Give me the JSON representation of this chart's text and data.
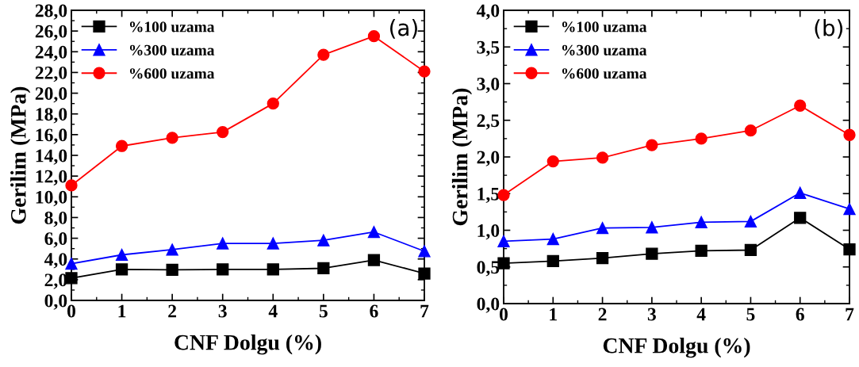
{
  "chart_data": [
    {
      "type": "line",
      "xlabel": "CNF Dolgu (%)",
      "ylabel": "Gerilim (MPa)",
      "annotations": [
        "(a)"
      ],
      "legend": "top left",
      "grid": false,
      "x": [
        0,
        1,
        2,
        3,
        4,
        5,
        6,
        7
      ],
      "xlim": [
        0,
        7
      ],
      "xticks": [
        0,
        1,
        2,
        3,
        4,
        5,
        6,
        7
      ],
      "ylim": [
        0,
        28
      ],
      "yticks": [
        {
          "value": 0,
          "label": "0,0"
        },
        {
          "value": 2,
          "label": "2,0"
        },
        {
          "value": 4,
          "label": "4,0"
        },
        {
          "value": 6,
          "label": "6,0"
        },
        {
          "value": 8,
          "label": "8,0"
        },
        {
          "value": 10,
          "label": "10,0"
        },
        {
          "value": 12,
          "label": "12,0"
        },
        {
          "value": 14,
          "label": "14,0"
        },
        {
          "value": 16,
          "label": "16,0"
        },
        {
          "value": 18,
          "label": "18,0"
        },
        {
          "value": 20,
          "label": "20,0"
        },
        {
          "value": 22,
          "label": "22,0"
        },
        {
          "value": 24,
          "label": "24,0"
        },
        {
          "value": 26,
          "label": "26,0"
        },
        {
          "value": 28,
          "label": "28,0"
        }
      ],
      "series": [
        {
          "name": "%100 uzama",
          "color": "#000000",
          "marker": "square",
          "values": [
            2.15,
            3.0,
            2.95,
            3.0,
            3.0,
            3.1,
            3.9,
            2.6
          ]
        },
        {
          "name": "%300 uzama",
          "color": "#0000ff",
          "marker": "triangle",
          "values": [
            3.55,
            4.4,
            4.9,
            5.5,
            5.5,
            5.8,
            6.6,
            4.75
          ]
        },
        {
          "name": "%600 uzama",
          "color": "#ff0000",
          "marker": "circle",
          "values": [
            11.1,
            14.9,
            15.7,
            16.25,
            19.0,
            23.7,
            25.5,
            22.1
          ]
        }
      ]
    },
    {
      "type": "line",
      "xlabel": "CNF Dolgu (%)",
      "ylabel": "Gerilim (MPa)",
      "annotations": [
        "(b)"
      ],
      "legend": "top left",
      "grid": false,
      "x": [
        0,
        1,
        2,
        3,
        4,
        5,
        6,
        7
      ],
      "xlim": [
        0,
        7
      ],
      "xticks": [
        0,
        1,
        2,
        3,
        4,
        5,
        6,
        7
      ],
      "ylim": [
        0,
        4
      ],
      "yticks": [
        {
          "value": 0,
          "label": "0,0"
        },
        {
          "value": 0.5,
          "label": "0,5"
        },
        {
          "value": 1,
          "label": "1,0"
        },
        {
          "value": 1.5,
          "label": "1,5"
        },
        {
          "value": 2,
          "label": "2,0"
        },
        {
          "value": 2.5,
          "label": "2,5"
        },
        {
          "value": 3,
          "label": "3,0"
        },
        {
          "value": 3.5,
          "label": "3,5"
        },
        {
          "value": 4,
          "label": "4,0"
        }
      ],
      "series": [
        {
          "name": "%100 uzama",
          "color": "#000000",
          "marker": "square",
          "values": [
            0.55,
            0.58,
            0.62,
            0.68,
            0.72,
            0.73,
            1.17,
            0.74
          ]
        },
        {
          "name": "%300 uzama",
          "color": "#0000ff",
          "marker": "triangle",
          "values": [
            0.85,
            0.88,
            1.03,
            1.04,
            1.11,
            1.12,
            1.51,
            1.29
          ]
        },
        {
          "name": "%600 uzama",
          "color": "#ff0000",
          "marker": "circle",
          "values": [
            1.48,
            1.94,
            1.99,
            2.16,
            2.25,
            2.36,
            2.7,
            2.3
          ]
        }
      ]
    }
  ]
}
